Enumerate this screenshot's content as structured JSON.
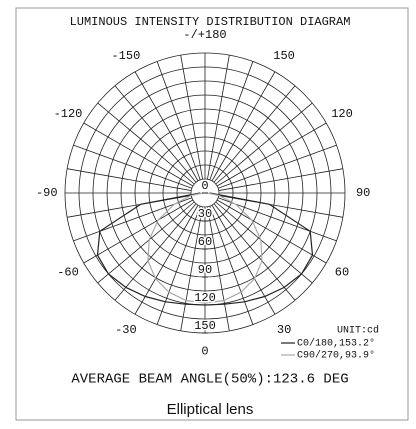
{
  "chart_data": {
    "type": "polar",
    "title": "LUMINOUS INTENSITY DISTRIBUTION DIAGRAM",
    "theta": [
      -90,
      -80,
      -70,
      -60,
      -50,
      -40,
      -30,
      -20,
      -10,
      0,
      10,
      20,
      30,
      40,
      50,
      60,
      70,
      80,
      90
    ],
    "series": [
      {
        "name": "C0/180,153.2°",
        "color": "#222222",
        "values": [
          5,
          70,
          120,
          133,
          135,
          132,
          128,
          124,
          121,
          120,
          121,
          124,
          128,
          132,
          135,
          133,
          120,
          70,
          5
        ]
      },
      {
        "name": "C90/270,93.9°",
        "color": "#aaaaaa",
        "values": [
          2,
          15,
          35,
          58,
          78,
          95,
          106,
          113,
          117,
          118,
          117,
          113,
          106,
          95,
          78,
          58,
          35,
          15,
          2
        ]
      }
    ],
    "rlim": [
      0,
      150
    ],
    "rticks": [
      0,
      30,
      60,
      90,
      120,
      150
    ],
    "r_grid_step": 15,
    "theta_grid_step": 10,
    "thetaticks": [
      {
        "value": 180,
        "label": "-/+180"
      },
      150,
      120,
      90,
      60,
      30,
      0,
      -30,
      -60,
      -90,
      -120,
      -150
    ],
    "unit": "UNIT:cd",
    "annotation": "AVERAGE BEAM ANGLE(50%):123.6 DEG",
    "caption": "Elliptical lens"
  }
}
